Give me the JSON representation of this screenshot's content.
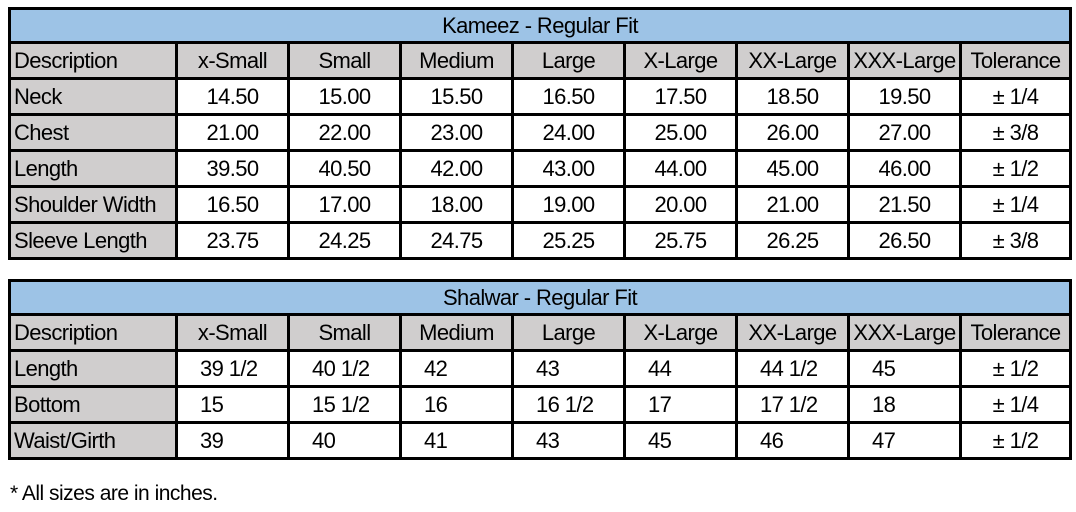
{
  "kameez": {
    "title": "Kameez - Regular Fit",
    "headers": [
      "Description",
      "x-Small",
      "Small",
      "Medium",
      "Large",
      "X-Large",
      "XX-Large",
      "XXX-Large",
      "Tolerance"
    ],
    "rows": [
      [
        "Neck",
        "14.50",
        "15.00",
        "15.50",
        "16.50",
        "17.50",
        "18.50",
        "19.50",
        "± 1/4"
      ],
      [
        "Chest",
        "21.00",
        "22.00",
        "23.00",
        "24.00",
        "25.00",
        "26.00",
        "27.00",
        "± 3/8"
      ],
      [
        "Length",
        "39.50",
        "40.50",
        "42.00",
        "43.00",
        "44.00",
        "45.00",
        "46.00",
        "± 1/2"
      ],
      [
        "Shoulder Width",
        "16.50",
        "17.00",
        "18.00",
        "19.00",
        "20.00",
        "21.00",
        "21.50",
        "± 1/4"
      ],
      [
        "Sleeve Length",
        "23.75",
        "24.25",
        "24.75",
        "25.25",
        "25.75",
        "26.25",
        "26.50",
        "± 3/8"
      ]
    ]
  },
  "shalwar": {
    "title": "Shalwar - Regular Fit",
    "headers": [
      "Description",
      "x-Small",
      "Small",
      "Medium",
      "Large",
      "X-Large",
      "XX-Large",
      "XXX-Large",
      "Tolerance"
    ],
    "rows": [
      [
        "Length",
        "39 1/2",
        "40 1/2",
        "42",
        "43",
        "44",
        "44 1/2",
        "45",
        "± 1/2"
      ],
      [
        "Bottom",
        "15",
        "15 1/2",
        "16",
        "16 1/2",
        "17",
        "17 1/2",
        "18",
        "± 1/4"
      ],
      [
        "Waist/Girth",
        "39",
        "40",
        "41",
        "43",
        "45",
        "46",
        "47",
        "± 1/2"
      ]
    ]
  },
  "footnote": "* All sizes are in inches.",
  "colors": {
    "title_bg": "#9dc3e6",
    "label_bg": "#d0cece",
    "border": "#000000"
  }
}
